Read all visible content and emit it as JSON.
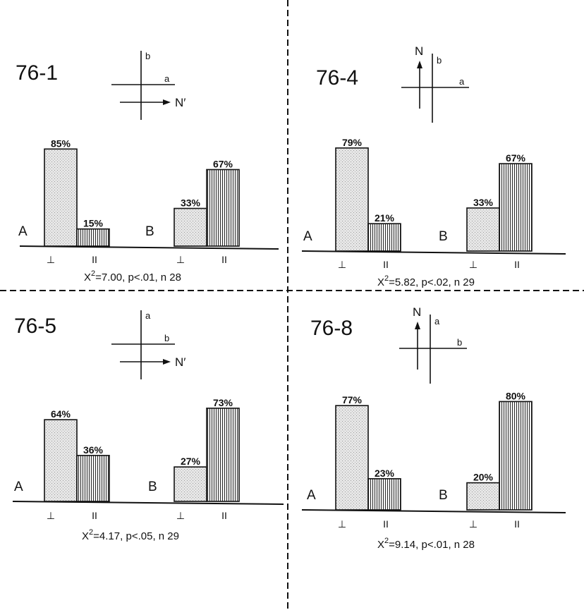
{
  "colors": {
    "ink": "#111111",
    "perpendicular_fill": "#e4e4e4",
    "parallel_fill": "#f2f2f2",
    "background": "#ffffff"
  },
  "symbols": {
    "perpendicular": "⊥",
    "parallel": "II"
  },
  "chart_data": [
    {
      "type": "bar",
      "title": "76-1",
      "orientation_inset": {
        "vertical_axis": "b",
        "horizontal_axis": "a",
        "north_arrow": "N′",
        "north_direction": "right"
      },
      "groups": [
        {
          "name": "A",
          "categories": [
            "⊥",
            "II"
          ],
          "values": [
            85,
            15
          ],
          "labels": [
            "85%",
            "15%"
          ]
        },
        {
          "name": "B",
          "categories": [
            "⊥",
            "II"
          ],
          "values": [
            33,
            67
          ],
          "labels": [
            "33%",
            "67%"
          ]
        }
      ],
      "statistic": {
        "chi_square": "7.00",
        "p": ".01",
        "p_relation": "<",
        "n": "28"
      },
      "ylim": [
        0,
        100
      ]
    },
    {
      "type": "bar",
      "title": "76-4",
      "orientation_inset": {
        "vertical_axis": "b",
        "horizontal_axis": "a",
        "north_arrow": "N",
        "north_direction": "up"
      },
      "groups": [
        {
          "name": "A",
          "categories": [
            "⊥",
            "II"
          ],
          "values": [
            79,
            21
          ],
          "labels": [
            "79%",
            "21%"
          ]
        },
        {
          "name": "B",
          "categories": [
            "⊥",
            "II"
          ],
          "values": [
            33,
            67
          ],
          "labels": [
            "33%",
            "67%"
          ]
        }
      ],
      "statistic": {
        "chi_square": "5.82",
        "p": ".02",
        "p_relation": "<",
        "n": "29"
      },
      "ylim": [
        0,
        100
      ]
    },
    {
      "type": "bar",
      "title": "76-5",
      "orientation_inset": {
        "vertical_axis": "a",
        "horizontal_axis": "b",
        "north_arrow": "N′",
        "north_direction": "right"
      },
      "groups": [
        {
          "name": "A",
          "categories": [
            "⊥",
            "II"
          ],
          "values": [
            64,
            36
          ],
          "labels": [
            "64%",
            "36%"
          ]
        },
        {
          "name": "B",
          "categories": [
            "⊥",
            "II"
          ],
          "values": [
            27,
            73
          ],
          "labels": [
            "27%",
            "73%"
          ]
        }
      ],
      "statistic": {
        "chi_square": "4.17",
        "p": ".05",
        "p_relation": "<",
        "n": "29"
      },
      "ylim": [
        0,
        100
      ]
    },
    {
      "type": "bar",
      "title": "76-8",
      "orientation_inset": {
        "vertical_axis": "a",
        "horizontal_axis": "b",
        "north_arrow": "N",
        "north_direction": "up"
      },
      "groups": [
        {
          "name": "A",
          "categories": [
            "⊥",
            "II"
          ],
          "values": [
            77,
            23
          ],
          "labels": [
            "77%",
            "23%"
          ]
        },
        {
          "name": "B",
          "categories": [
            "⊥",
            "II"
          ],
          "values": [
            20,
            80
          ],
          "labels": [
            "20%",
            "80%"
          ]
        }
      ],
      "statistic": {
        "chi_square": "9.14",
        "p": ".01",
        "p_relation": "<",
        "n": "28"
      },
      "ylim": [
        0,
        100
      ]
    }
  ]
}
